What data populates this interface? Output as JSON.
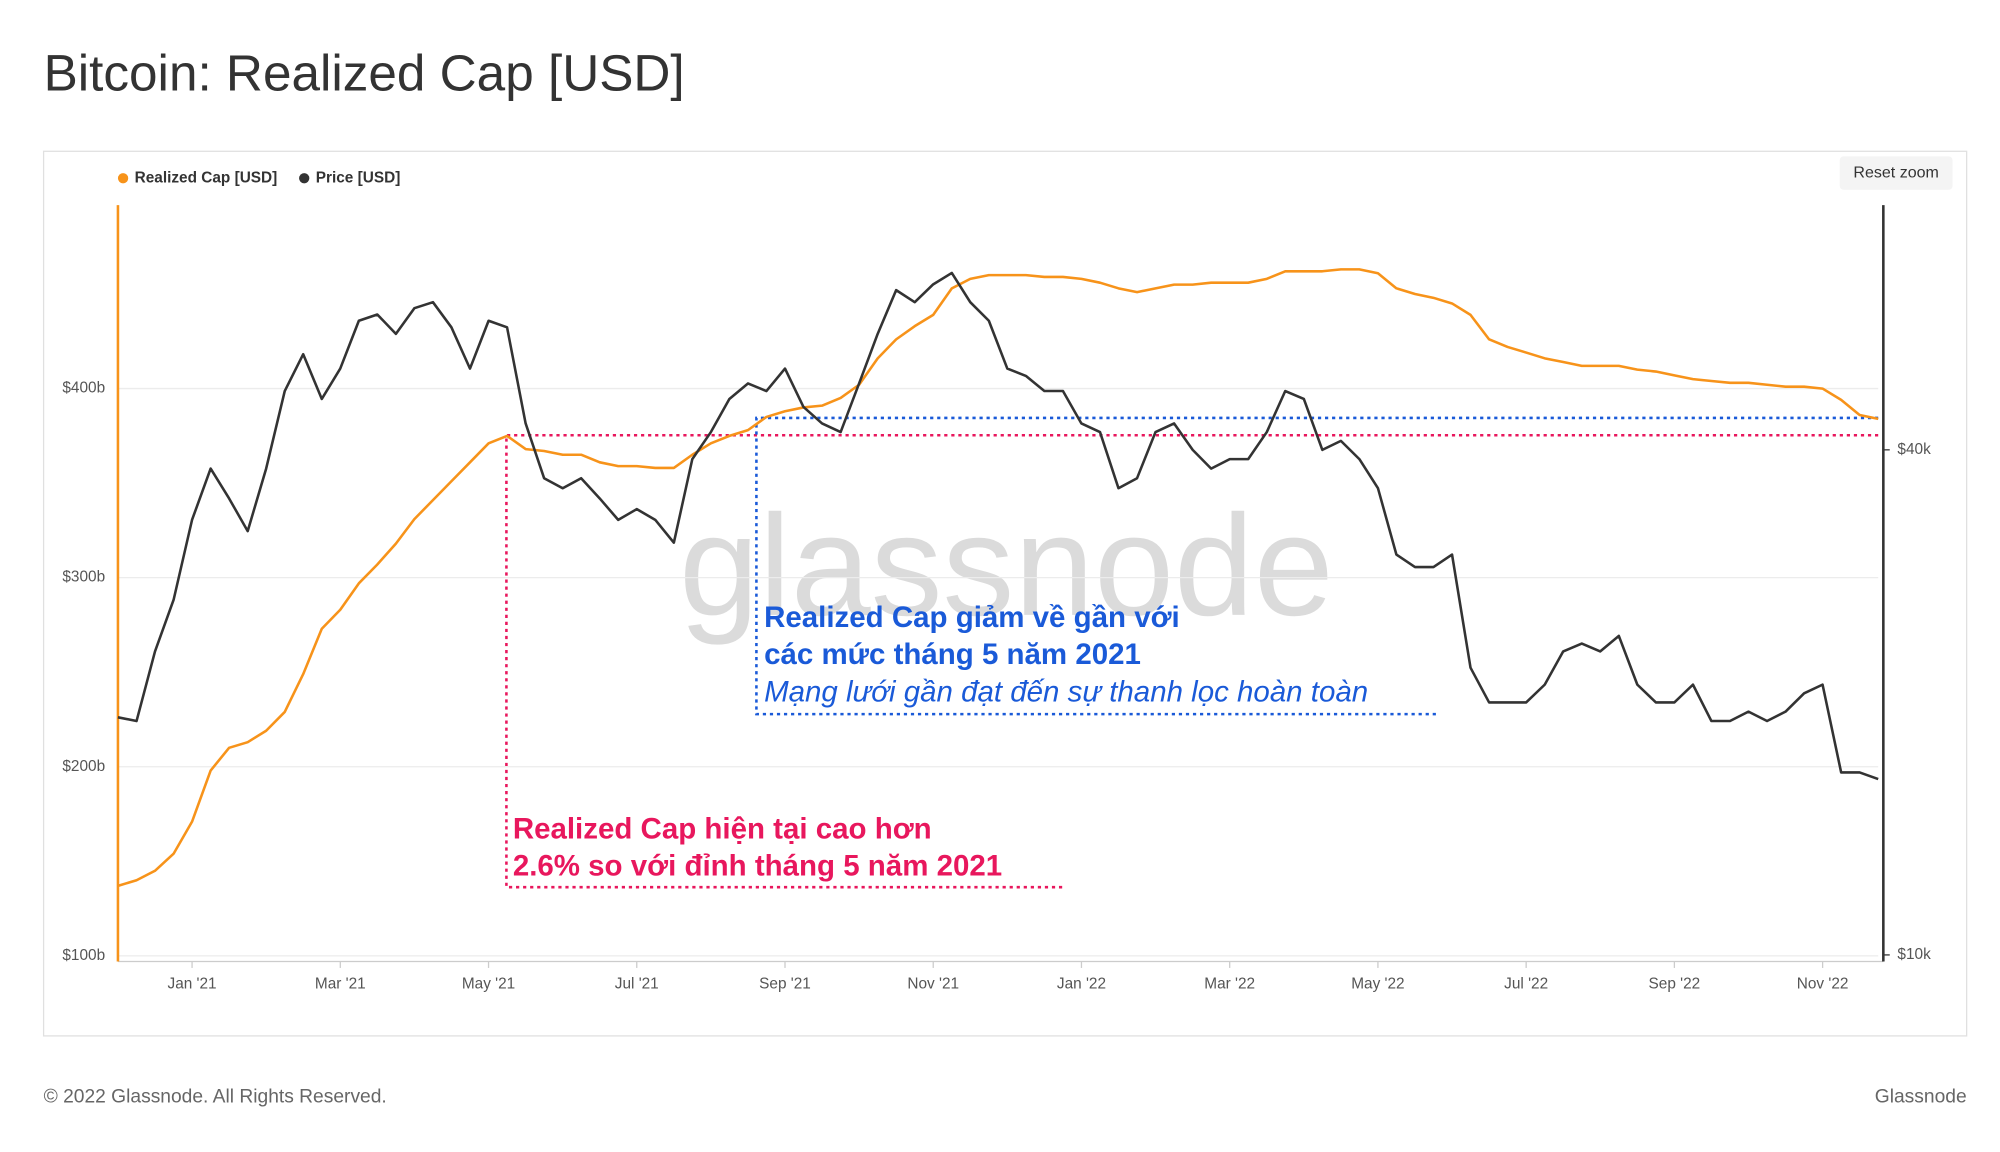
{
  "chart_data": {
    "type": "line",
    "title": "Bitcoin: Realized Cap [USD]",
    "categories": [
      null,
      null,
      null,
      null,
      "Jan '21",
      null,
      null,
      null,
      null,
      null,
      null,
      null,
      "Mar '21",
      null,
      null,
      null,
      null,
      null,
      null,
      null,
      "May '21",
      null,
      null,
      null,
      null,
      null,
      null,
      null,
      "Jul '21",
      null,
      null,
      null,
      null,
      null,
      null,
      null,
      "Sep '21",
      null,
      null,
      null,
      null,
      null,
      null,
      null,
      "Nov '21",
      null,
      null,
      null,
      null,
      null,
      null,
      null,
      "Jan '22",
      null,
      null,
      null,
      null,
      null,
      null,
      null,
      "Mar '22",
      null,
      null,
      null,
      null,
      null,
      null,
      null,
      "May '22",
      null,
      null,
      null,
      null,
      null,
      null,
      null,
      "Jul '22",
      null,
      null,
      null,
      null,
      null,
      null,
      null,
      "Sep '22",
      null,
      null,
      null,
      null,
      null,
      null,
      null,
      "Nov '22",
      null,
      null,
      null
    ],
    "series": [
      {
        "name": "Realized Cap [USD]",
        "color": "#f7931a",
        "axis": "y",
        "values": [
          137,
          140,
          145,
          154,
          171,
          198,
          210,
          213,
          219,
          229,
          249,
          273,
          283,
          297,
          307,
          318,
          331,
          341,
          351,
          361,
          371,
          375,
          368,
          367,
          365,
          365,
          361,
          359,
          359,
          358,
          358,
          365,
          371,
          375,
          378,
          385,
          388,
          390,
          391,
          395,
          402,
          416,
          426,
          433,
          439,
          453,
          458,
          460,
          460,
          460,
          459,
          459,
          458,
          456,
          453,
          451,
          453,
          455,
          455,
          456,
          456,
          456,
          458,
          462,
          462,
          462,
          463,
          463,
          461,
          453,
          450,
          448,
          445,
          439,
          426,
          422,
          419,
          416,
          414,
          412,
          412,
          412,
          410,
          409,
          407,
          405,
          404,
          403,
          403,
          402,
          401,
          401,
          400,
          394,
          386,
          384
        ]
      },
      {
        "name": "Price [USD]",
        "color": "#333333",
        "axis": "y2",
        "values": [
          19200,
          19000,
          23000,
          26500,
          33000,
          38000,
          35000,
          32000,
          38000,
          47000,
          52000,
          46000,
          50000,
          57000,
          58000,
          55000,
          59000,
          60000,
          56000,
          50000,
          57000,
          56000,
          43000,
          37000,
          36000,
          37000,
          35000,
          33000,
          34000,
          33000,
          31000,
          39000,
          42000,
          46000,
          48000,
          47000,
          50000,
          45000,
          43000,
          42000,
          48000,
          55000,
          62000,
          60000,
          63000,
          65000,
          60000,
          57000,
          50000,
          49000,
          47000,
          47000,
          43000,
          42000,
          36000,
          37000,
          42000,
          43000,
          40000,
          38000,
          39000,
          39000,
          42000,
          47000,
          46000,
          40000,
          41000,
          39000,
          36000,
          30000,
          29000,
          29000,
          30000,
          22000,
          20000,
          20000,
          20000,
          21000,
          23000,
          23500,
          23000,
          24000,
          21000,
          20000,
          20000,
          21000,
          19000,
          19000,
          19500,
          19000,
          19500,
          20500,
          21000,
          16500,
          16500,
          16200
        ]
      }
    ],
    "ylim": [
      97,
      497
    ],
    "yticks": [
      {
        "value": 100,
        "label": "$100b"
      },
      {
        "value": 200,
        "label": "$200b"
      },
      {
        "value": 300,
        "label": "$300b"
      },
      {
        "value": 400,
        "label": "$400b"
      }
    ],
    "y2lim": [
      9820,
      78300
    ],
    "y2ticks": [
      {
        "value": 10000,
        "label": "$10k"
      },
      {
        "value": 40000,
        "label": "$40k"
      }
    ],
    "y2log": true,
    "grid": true,
    "legend": "top-left",
    "reset_button": "Reset zoom",
    "watermark": "glassnode",
    "annotations": [
      {
        "lines": [
          "Realized Cap hiện tại cao hơn",
          "2.6% so với đỉnh tháng 5 năm 2021"
        ],
        "color": "#e8175d"
      },
      {
        "lines": [
          "Realized Cap giảm về gần với",
          "các mức tháng 5 năm 2021",
          "Mạng lưới gần đạt đến sự thanh lọc hoàn toàn"
        ],
        "color": "#1a5ad8"
      }
    ]
  },
  "footer": {
    "copyright": "© 2022 Glassnode. All Rights Reserved.",
    "brand": "Glassnode"
  }
}
